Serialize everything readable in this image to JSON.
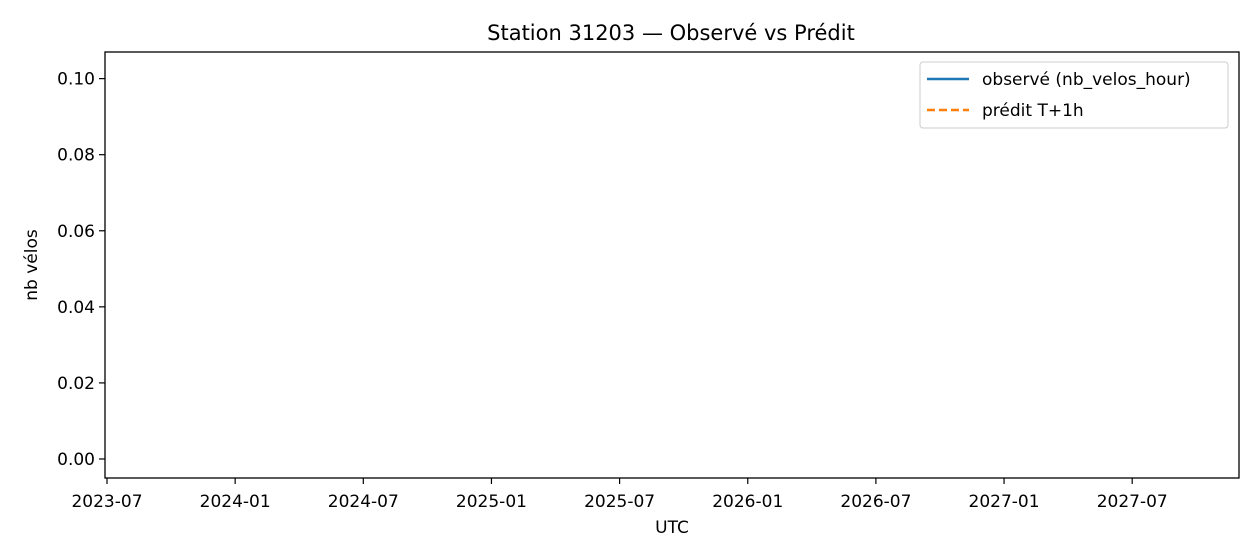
{
  "chart_data": {
    "type": "line",
    "title": "Station 31203 — Observé vs Prédit",
    "xlabel": "UTC",
    "ylabel": "nb vélos",
    "x_tick_labels": [
      "2023-07",
      "2024-01",
      "2024-07",
      "2025-01",
      "2025-07",
      "2026-01",
      "2026-07",
      "2027-01",
      "2027-07"
    ],
    "y_tick_labels": [
      "0.00",
      "0.02",
      "0.04",
      "0.06",
      "0.08",
      "0.10"
    ],
    "y_ticks": [
      0.0,
      0.02,
      0.04,
      0.06,
      0.08,
      0.1
    ],
    "xlim": [
      "2023-07",
      "2027-12"
    ],
    "ylim": [
      -0.005,
      0.107
    ],
    "grid": false,
    "legend_position": "top-right",
    "series": [
      {
        "name": "observé (nb_velos_hour)",
        "color": "#1f77b4",
        "style": "solid",
        "values": []
      },
      {
        "name": "prédit T+1h",
        "color": "#ff7f0e",
        "style": "dashed",
        "values": []
      }
    ]
  }
}
